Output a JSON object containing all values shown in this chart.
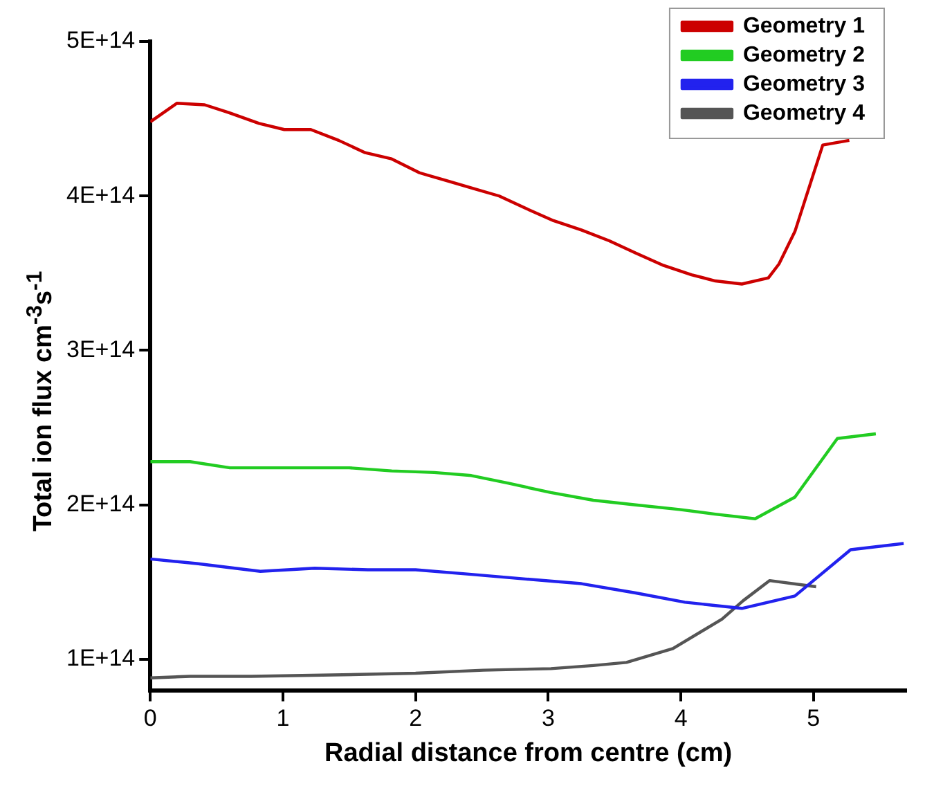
{
  "chart_data": {
    "type": "line",
    "xlabel": "Radial distance from centre (cm)",
    "ylabel": "Total ion flux cm$^{-3}$s$^{-1}$",
    "xlim": [
      0,
      5.7
    ],
    "xticks": [
      0,
      1,
      2,
      3,
      4,
      5
    ],
    "ylim": [
      80000000000000.0,
      500000000000000.0
    ],
    "yticks": [
      {
        "value": 100000000000000.0,
        "label": "1E+14"
      },
      {
        "value": 200000000000000.0,
        "label": "2E+14"
      },
      {
        "value": 300000000000000.0,
        "label": "3E+14"
      },
      {
        "value": 400000000000000.0,
        "label": "4E+14"
      },
      {
        "value": 500000000000000.0,
        "label": "5E+14"
      }
    ],
    "grid": false,
    "legend": "top right",
    "marker": "none",
    "line_style": "solid",
    "series": [
      {
        "name": "Geometry 1",
        "color": "#cc0000",
        "x": [
          0,
          0.2,
          0.41,
          0.59,
          0.82,
          1.01,
          1.21,
          1.42,
          1.62,
          1.82,
          2.03,
          2.23,
          2.43,
          2.63,
          2.83,
          3.04,
          3.25,
          3.46,
          3.66,
          3.87,
          4.08,
          4.26,
          4.46,
          4.66,
          4.74,
          4.86,
          5.07,
          5.27
        ],
        "values": [
          448000000000000.0,
          460000000000000.0,
          459000000000000.0,
          454000000000000.0,
          447000000000000.0,
          443000000000000.0,
          443000000000000.0,
          436000000000000.0,
          428000000000000.0,
          424000000000000.0,
          415000000000000.0,
          410000000000000.0,
          405000000000000.0,
          400000000000000.0,
          392000000000000.0,
          384000000000000.0,
          378000000000000.0,
          371000000000000.0,
          363000000000000.0,
          355000000000000.0,
          349000000000000.0,
          345000000000000.0,
          343000000000000.0,
          347000000000000.0,
          356000000000000.0,
          377000000000000.0,
          433000000000000.0,
          436000000000000.0
        ]
      },
      {
        "name": "Geometry 2",
        "color": "#22cc22",
        "x": [
          0,
          0.3,
          0.6,
          0.81,
          1.13,
          1.5,
          1.82,
          2.14,
          2.42,
          2.7,
          3.02,
          3.34,
          3.66,
          3.99,
          4.26,
          4.56,
          4.86,
          5.18,
          5.47
        ],
        "values": [
          228000000000000.0,
          228000000000000.0,
          224000000000000.0,
          224000000000000.0,
          224000000000000.0,
          224000000000000.0,
          222000000000000.0,
          221000000000000.0,
          219000000000000.0,
          214000000000000.0,
          208000000000000.0,
          203000000000000.0,
          200000000000000.0,
          197000000000000.0,
          194000000000000.0,
          191000000000000.0,
          205000000000000.0,
          243000000000000.0,
          246000000000000.0
        ]
      },
      {
        "name": "Geometry 3",
        "color": "#2222ee",
        "x": [
          0,
          0.35,
          0.83,
          1.24,
          1.64,
          2.0,
          2.42,
          2.83,
          3.25,
          3.66,
          4.03,
          4.46,
          4.86,
          5.28,
          5.68
        ],
        "values": [
          165000000000000.0,
          162000000000000.0,
          157000000000000.0,
          159000000000000.0,
          158000000000000.0,
          158000000000000.0,
          155000000000000.0,
          152000000000000.0,
          149000000000000.0,
          143000000000000.0,
          137000000000000.0,
          133000000000000.0,
          141000000000000.0,
          171000000000000.0,
          175000000000000.0
        ]
      },
      {
        "name": "Geometry 4",
        "color": "#555555",
        "x": [
          0,
          0.3,
          0.76,
          1.45,
          2.0,
          2.51,
          3.02,
          3.34,
          3.59,
          3.94,
          4.31,
          4.47,
          4.67,
          5.02
        ],
        "values": [
          88000000000000.0,
          89000000000000.0,
          89000000000000.0,
          90000000000000.0,
          91000000000000.0,
          93000000000000.0,
          94000000000000.0,
          96000000000000.0,
          98000000000000.0,
          107000000000000.0,
          126000000000000.0,
          138000000000000.0,
          151000000000000.0,
          147000000000000.0
        ]
      }
    ]
  }
}
